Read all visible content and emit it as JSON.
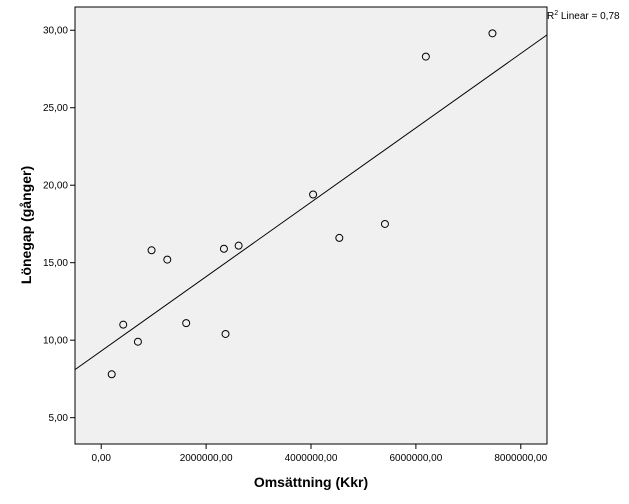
{
  "chart_data": {
    "type": "scatter",
    "xlabel": "Omsättning (Kkr)",
    "ylabel": "Lönegap (gånger)",
    "xlim": [
      -500000,
      8500000
    ],
    "ylim": [
      3.3,
      31.5
    ],
    "x_ticks": [
      0,
      2000000,
      4000000,
      6000000,
      8000000
    ],
    "x_tick_labels": [
      "0,00",
      "2000000,00",
      "4000000,00",
      "6000000,00",
      "8000000,00"
    ],
    "y_ticks": [
      5,
      10,
      15,
      20,
      25,
      30
    ],
    "y_tick_labels": [
      "5,00",
      "10,00",
      "15,00",
      "20,00",
      "25,00",
      "30,00"
    ],
    "points": [
      {
        "x": 200000,
        "y": 7.8
      },
      {
        "x": 420000,
        "y": 11.0
      },
      {
        "x": 700000,
        "y": 9.9
      },
      {
        "x": 960000,
        "y": 15.8
      },
      {
        "x": 1260000,
        "y": 15.2
      },
      {
        "x": 1620000,
        "y": 11.1
      },
      {
        "x": 2340000,
        "y": 15.9
      },
      {
        "x": 2370000,
        "y": 10.4
      },
      {
        "x": 2620000,
        "y": 16.1
      },
      {
        "x": 4040000,
        "y": 19.4
      },
      {
        "x": 4540000,
        "y": 16.6
      },
      {
        "x": 5410000,
        "y": 17.5
      },
      {
        "x": 6190000,
        "y": 28.3
      },
      {
        "x": 7460000,
        "y": 29.8
      }
    ],
    "fit_line": {
      "intercept": 9.3,
      "slope": 2.4e-06,
      "label_prefix": "R",
      "label_sup": "2",
      "label_rest": " Linear = 0,78"
    },
    "grid": false,
    "colors": {
      "plot_bg": "#f0f0f0",
      "line": "#000000",
      "marker_edge": "#000000"
    }
  }
}
